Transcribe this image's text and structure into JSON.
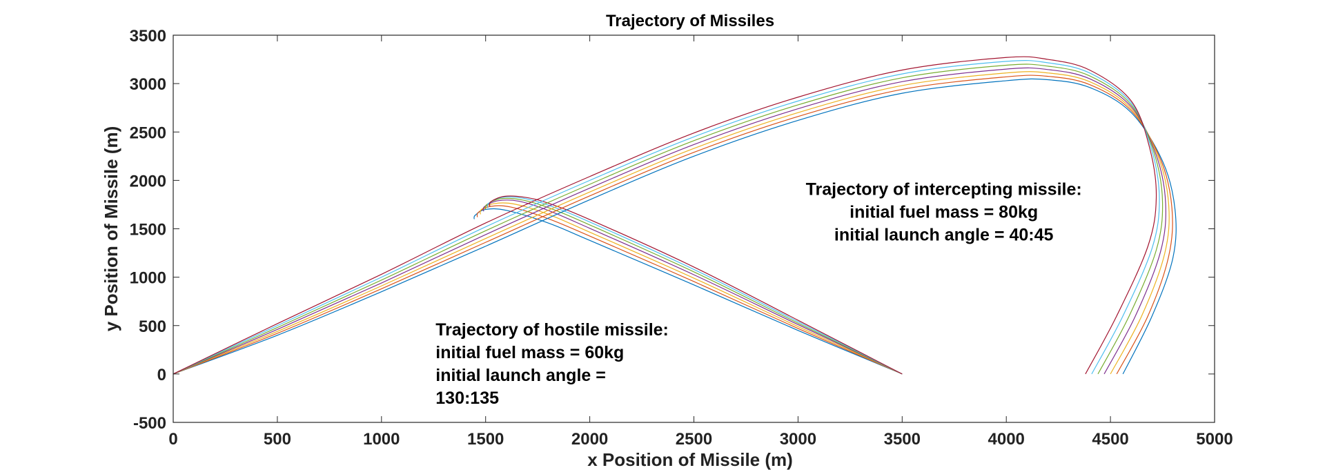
{
  "chart_data": {
    "type": "line",
    "title": "Trajectory of Missiles",
    "xlabel": "x Position of Missile (m)",
    "ylabel": "y Position of Missile (m)",
    "xlim": [
      0,
      5000
    ],
    "ylim": [
      -500,
      3500
    ],
    "xticks": [
      0,
      500,
      1000,
      1500,
      2000,
      2500,
      3000,
      3500,
      4000,
      4500,
      5000
    ],
    "yticks": [
      -500,
      0,
      500,
      1000,
      1500,
      2000,
      2500,
      3000,
      3500
    ],
    "grid": false,
    "box": true,
    "colors": [
      "#0072BD",
      "#D95319",
      "#EDB120",
      "#7E2F8E",
      "#77AC30",
      "#4DBEEE",
      "#A2142F"
    ],
    "series": [
      {
        "group": "hostile",
        "x": [
          3500,
          3000,
          2500,
          2000,
          1800,
          1600,
          1500,
          1450,
          1445
        ],
        "y": [
          0,
          450,
          920,
          1380,
          1560,
          1690,
          1700,
          1640,
          1600
        ]
      },
      {
        "group": "hostile",
        "x": [
          3500,
          3000,
          2500,
          2000,
          1800,
          1620,
          1520,
          1465,
          1460
        ],
        "y": [
          0,
          470,
          955,
          1425,
          1605,
          1725,
          1730,
          1670,
          1620
        ]
      },
      {
        "group": "hostile",
        "x": [
          3500,
          3000,
          2500,
          2000,
          1800,
          1640,
          1540,
          1480,
          1475
        ],
        "y": [
          0,
          490,
          990,
          1465,
          1650,
          1755,
          1760,
          1700,
          1650
        ]
      },
      {
        "group": "hostile",
        "x": [
          3500,
          3000,
          2500,
          2000,
          1800,
          1660,
          1560,
          1495,
          1490
        ],
        "y": [
          0,
          510,
          1025,
          1505,
          1690,
          1785,
          1790,
          1730,
          1680
        ]
      },
      {
        "group": "hostile",
        "x": [
          3500,
          3000,
          2500,
          2000,
          1800,
          1670,
          1570,
          1505,
          1500
        ],
        "y": [
          0,
          525,
          1055,
          1540,
          1720,
          1800,
          1810,
          1750,
          1700
        ]
      },
      {
        "group": "hostile",
        "x": [
          3500,
          3000,
          2500,
          2000,
          1800,
          1680,
          1580,
          1515,
          1510
        ],
        "y": [
          0,
          540,
          1080,
          1570,
          1745,
          1815,
          1825,
          1765,
          1715
        ]
      },
      {
        "group": "hostile",
        "x": [
          3500,
          3000,
          2500,
          2000,
          1800,
          1690,
          1590,
          1525,
          1520
        ],
        "y": [
          0,
          555,
          1105,
          1595,
          1765,
          1825,
          1835,
          1780,
          1730
        ]
      },
      {
        "group": "intercepting",
        "x": [
          0,
          500,
          1000,
          1500,
          2000,
          2500,
          3000,
          3500,
          4000,
          4200,
          4400,
          4600,
          4750,
          4810,
          4800,
          4700,
          4560
        ],
        "y": [
          0,
          400,
          850,
          1320,
          1800,
          2250,
          2620,
          2900,
          3030,
          3040,
          2960,
          2700,
          2200,
          1700,
          1200,
          600,
          0
        ]
      },
      {
        "group": "intercepting",
        "x": [
          0,
          500,
          1000,
          1500,
          2000,
          2500,
          3000,
          3500,
          4000,
          4200,
          4400,
          4600,
          4740,
          4795,
          4780,
          4680,
          4530
        ],
        "y": [
          0,
          420,
          880,
          1360,
          1840,
          2290,
          2660,
          2940,
          3070,
          3075,
          2990,
          2720,
          2220,
          1720,
          1220,
          600,
          0
        ]
      },
      {
        "group": "intercepting",
        "x": [
          0,
          500,
          1000,
          1500,
          2000,
          2500,
          3000,
          3500,
          4000,
          4200,
          4400,
          4600,
          4730,
          4780,
          4760,
          4650,
          4500
        ],
        "y": [
          0,
          440,
          910,
          1400,
          1880,
          2330,
          2700,
          2980,
          3110,
          3110,
          3020,
          2740,
          2240,
          1740,
          1240,
          600,
          0
        ]
      },
      {
        "group": "intercepting",
        "x": [
          0,
          500,
          1000,
          1500,
          2000,
          2500,
          3000,
          3500,
          4000,
          4200,
          4400,
          4600,
          4720,
          4765,
          4740,
          4620,
          4470
        ],
        "y": [
          0,
          460,
          940,
          1440,
          1920,
          2370,
          2740,
          3020,
          3150,
          3145,
          3050,
          2760,
          2260,
          1760,
          1260,
          600,
          0
        ]
      },
      {
        "group": "intercepting",
        "x": [
          0,
          500,
          1000,
          1500,
          2000,
          2500,
          3000,
          3500,
          4000,
          4200,
          4400,
          4600,
          4710,
          4750,
          4720,
          4590,
          4440
        ],
        "y": [
          0,
          480,
          970,
          1480,
          1960,
          2410,
          2780,
          3060,
          3190,
          3180,
          3080,
          2780,
          2280,
          1780,
          1280,
          600,
          0
        ]
      },
      {
        "group": "intercepting",
        "x": [
          0,
          500,
          1000,
          1500,
          2000,
          2500,
          3000,
          3500,
          4000,
          4200,
          4400,
          4600,
          4700,
          4735,
          4700,
          4560,
          4410
        ],
        "y": [
          0,
          500,
          1000,
          1520,
          2000,
          2450,
          2820,
          3100,
          3230,
          3215,
          3110,
          2800,
          2300,
          1800,
          1300,
          600,
          0
        ]
      },
      {
        "group": "intercepting",
        "x": [
          0,
          500,
          1000,
          1500,
          2000,
          2500,
          3000,
          3500,
          4000,
          4200,
          4400,
          4600,
          4690,
          4720,
          4680,
          4530,
          4380
        ],
        "y": [
          0,
          520,
          1030,
          1560,
          2040,
          2490,
          2860,
          3140,
          3270,
          3250,
          3140,
          2820,
          2320,
          1820,
          1320,
          600,
          0
        ]
      }
    ],
    "annotations": [
      {
        "id": "hostile",
        "align": "left",
        "at": [
          1260,
          400
        ],
        "lines": [
          "Trajectory of hostile missile:",
          "initial fuel mass = 60kg",
          "initial launch angle =",
          "130:135"
        ]
      },
      {
        "id": "intercepting",
        "align": "center",
        "at": [
          3700,
          1850
        ],
        "lines": [
          "Trajectory of intercepting missile:",
          "initial fuel mass = 80kg",
          "initial launch angle = 40:45"
        ]
      }
    ]
  }
}
